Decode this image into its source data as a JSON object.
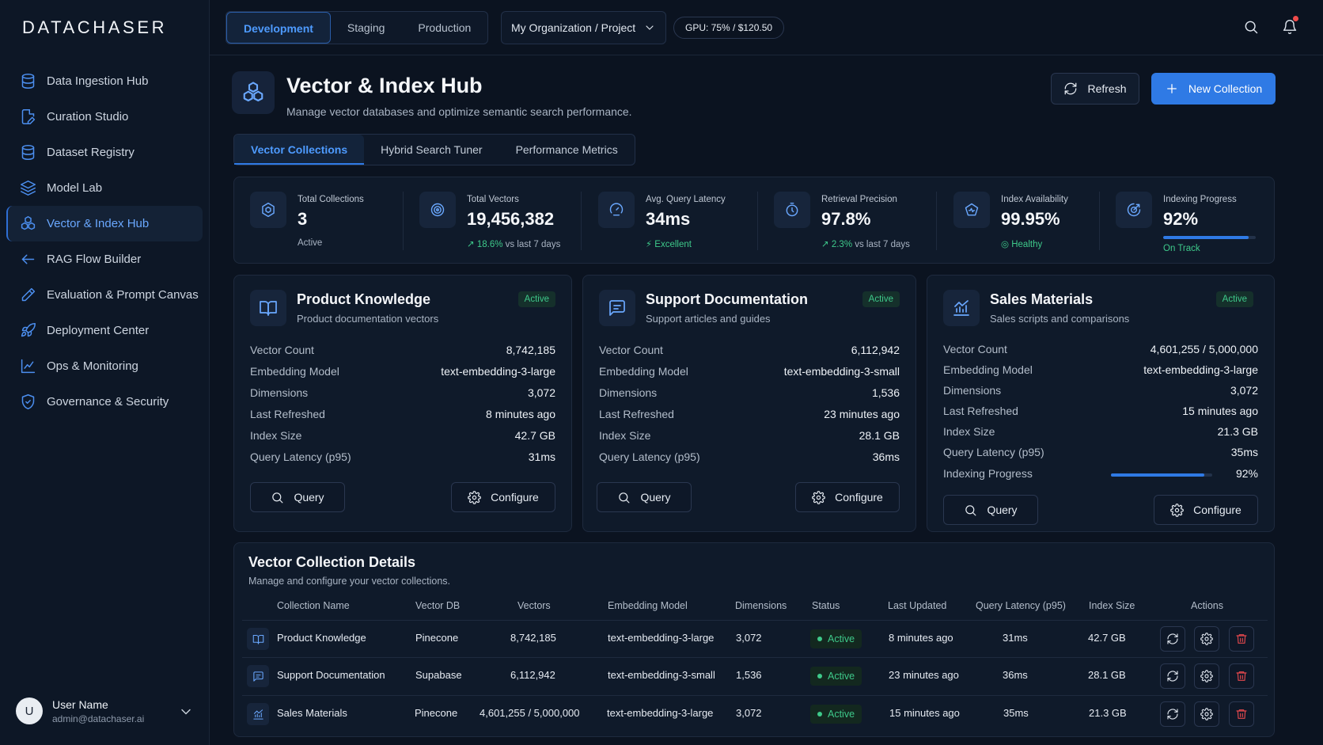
{
  "brand": {
    "logo": "DATACHASER"
  },
  "sidebar": {
    "items": [
      {
        "label": "Data Ingestion Hub",
        "icon": "database-icon"
      },
      {
        "label": "Curation Studio",
        "icon": "file-edit-icon"
      },
      {
        "label": "Dataset Registry",
        "icon": "database-icon"
      },
      {
        "label": "Model Lab",
        "icon": "layers-icon"
      },
      {
        "label": "Vector & Index Hub",
        "icon": "cubes-icon",
        "active": true
      },
      {
        "label": "RAG Flow Builder",
        "icon": "arrow-left-icon"
      },
      {
        "label": "Evaluation & Prompt Canvas",
        "icon": "pencil-icon"
      },
      {
        "label": "Deployment Center",
        "icon": "rocket-icon"
      },
      {
        "label": "Ops & Monitoring",
        "icon": "line-chart-icon"
      },
      {
        "label": "Governance & Security",
        "icon": "shield-icon"
      }
    ],
    "user": {
      "initial": "U",
      "name": "User Name",
      "email": "admin@datachaser.ai"
    }
  },
  "topbar": {
    "env_tabs": [
      "Development",
      "Staging",
      "Production"
    ],
    "active_env": "Development",
    "org_selector": "My Organization / Project",
    "gpu": "GPU: 75% / $120.50"
  },
  "header": {
    "title": "Vector & Index Hub",
    "subtitle": "Manage vector databases and optimize semantic search performance.",
    "refresh_label": "Refresh",
    "new_collection_label": "New Collection"
  },
  "tabs": [
    "Vector Collections",
    "Hybrid Search Tuner",
    "Performance Metrics"
  ],
  "stats": [
    {
      "label": "Total Collections",
      "value": "3",
      "sub": "Active",
      "icon": "hexagon-icon"
    },
    {
      "label": "Total Vectors",
      "value": "19,456,382",
      "sub_accent": "↗ 18.6%",
      "sub": " vs last 7 days",
      "icon": "target-icon"
    },
    {
      "label": "Avg. Query Latency",
      "value": "34ms",
      "sub_accent": "⚡ Excellent",
      "sub": "",
      "icon": "speed-icon"
    },
    {
      "label": "Retrieval Precision",
      "value": "97.8%",
      "sub_accent": "↗ 2.3%",
      "sub": " vs last 7 days",
      "icon": "gauge-icon"
    },
    {
      "label": "Index Availability",
      "value": "99.95%",
      "sub_accent": "◎ Healthy",
      "sub": "",
      "icon": "health-icon"
    },
    {
      "label": "Indexing Progress",
      "value": "92%",
      "sub_accent": "On Track",
      "sub": "",
      "icon": "progress-icon",
      "progress": 0.92
    }
  ],
  "cards": [
    {
      "title": "Product Knowledge",
      "subtitle": "Product documentation vectors",
      "status": "Active",
      "icon": "book-icon",
      "rows": [
        {
          "k": "Vector Count",
          "v": "8,742,185"
        },
        {
          "k": "Embedding Model",
          "v": "text-embedding-3-large"
        },
        {
          "k": "Dimensions",
          "v": "3,072"
        },
        {
          "k": "Last Refreshed",
          "v": "8 minutes ago"
        },
        {
          "k": "Index Size",
          "v": "42.7 GB"
        },
        {
          "k": "Query Latency (p95)",
          "v": "31ms"
        }
      ],
      "query_label": "Query",
      "configure_label": "Configure"
    },
    {
      "title": "Support Documentation",
      "subtitle": "Support articles and guides",
      "status": "Active",
      "icon": "message-icon",
      "rows": [
        {
          "k": "Vector Count",
          "v": "6,112,942"
        },
        {
          "k": "Embedding Model",
          "v": "text-embedding-3-small"
        },
        {
          "k": "Dimensions",
          "v": "1,536"
        },
        {
          "k": "Last Refreshed",
          "v": "23 minutes ago"
        },
        {
          "k": "Index Size",
          "v": "28.1 GB"
        },
        {
          "k": "Query Latency (p95)",
          "v": "36ms"
        }
      ],
      "query_label": "Query",
      "configure_label": "Configure"
    },
    {
      "title": "Sales Materials",
      "subtitle": "Sales scripts and comparisons",
      "status": "Active",
      "icon": "bar-chart-icon",
      "rows": [
        {
          "k": "Vector Count",
          "v": "4,601,255 / 5,000,000"
        },
        {
          "k": "Embedding Model",
          "v": "text-embedding-3-large"
        },
        {
          "k": "Dimensions",
          "v": "3,072"
        },
        {
          "k": "Last Refreshed",
          "v": "15 minutes ago"
        },
        {
          "k": "Index Size",
          "v": "21.3 GB"
        },
        {
          "k": "Query Latency (p95)",
          "v": "35ms"
        },
        {
          "k": "Indexing Progress",
          "v": "92%",
          "progress": 0.92
        }
      ],
      "query_label": "Query",
      "configure_label": "Configure"
    }
  ],
  "table": {
    "title": "Vector Collection Details",
    "subtitle": "Manage and configure your vector collections.",
    "columns": [
      "Collection Name",
      "Vector DB",
      "Vectors",
      "Embedding Model",
      "Dimensions",
      "Status",
      "Last Updated",
      "Query Latency (p95)",
      "Index Size",
      "Actions"
    ],
    "rows": [
      {
        "name": "Product Knowledge",
        "db": "Pinecone",
        "vectors": "8,742,185",
        "model": "text-embedding-3-large",
        "dims": "3,072",
        "status": "Active",
        "updated": "8 minutes ago",
        "latency": "31ms",
        "size": "42.7 GB",
        "icon": "book-icon"
      },
      {
        "name": "Support Documentation",
        "db": "Supabase",
        "vectors": "6,112,942",
        "model": "text-embedding-3-small",
        "dims": "1,536",
        "status": "Active",
        "updated": "23 minutes ago",
        "latency": "36ms",
        "size": "28.1 GB",
        "icon": "message-icon"
      },
      {
        "name": "Sales Materials",
        "db": "Pinecone",
        "vectors": "4,601,255 / 5,000,000",
        "model": "text-embedding-3-large",
        "dims": "3,072",
        "status": "Active",
        "updated": "15 minutes ago",
        "latency": "35ms",
        "size": "21.3 GB",
        "icon": "bar-chart-icon"
      }
    ]
  },
  "colors": {
    "accent": "#2f7ae5",
    "success": "#3ec98a",
    "danger": "#e5484d",
    "logo_accent": "#f04b4b"
  }
}
